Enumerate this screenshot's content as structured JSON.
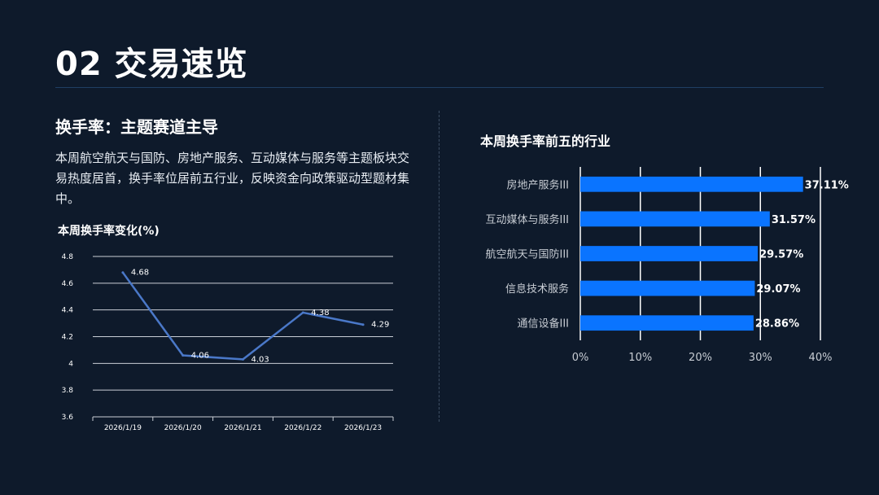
{
  "slide": {
    "title": "02 交易速览",
    "section_heading": "换手率：主题赛道主导",
    "section_body": "本周航空航天与国防、房地产服务、互动媒体与服务等主题板块交易热度居首，换手率位居前五行业，反映资金向政策驱动型题材集中。"
  },
  "colors": {
    "background": "#0e1a2b",
    "line": "#4a78c8",
    "bar": "#0a74ff",
    "grid_left": "#c9ced6",
    "grid_right": "#ffffff"
  },
  "chart_data": [
    {
      "type": "line",
      "title": "本周换手率变化(%)",
      "x": [
        "2026/1/19",
        "2026/1/20",
        "2026/1/21",
        "2026/1/22",
        "2026/1/23"
      ],
      "series": [
        {
          "values": [
            4.68,
            4.06,
            4.03,
            4.38,
            4.29
          ]
        }
      ],
      "data_labels": [
        "4.68",
        "4.06",
        "4.03",
        "4.38",
        "4.29"
      ],
      "ylim": [
        3.6,
        4.8
      ],
      "yticks": [
        3.6,
        3.8,
        4,
        4.2,
        4.4,
        4.6,
        4.8
      ],
      "ytick_labels": [
        "3.6",
        "3.8",
        "4",
        "4.2",
        "4.4",
        "4.6",
        "4.8"
      ],
      "grid": true,
      "legend": "none"
    },
    {
      "type": "bar",
      "orientation": "horizontal",
      "title": "本周换手率前五的行业",
      "categories": [
        "房地产服务III",
        "互动媒体与服务III",
        "航空航天与国防III",
        "信息技术服务",
        "通信设备III"
      ],
      "values": [
        37.11,
        31.57,
        29.57,
        29.07,
        28.86
      ],
      "data_labels": [
        "37.11%",
        "31.57%",
        "29.57%",
        "29.07%",
        "28.86%"
      ],
      "xlim": [
        0,
        40
      ],
      "xticks": [
        0,
        10,
        20,
        30,
        40
      ],
      "xtick_labels": [
        "0%",
        "10%",
        "20%",
        "30%",
        "40%"
      ],
      "grid": true,
      "legend": "none"
    }
  ]
}
